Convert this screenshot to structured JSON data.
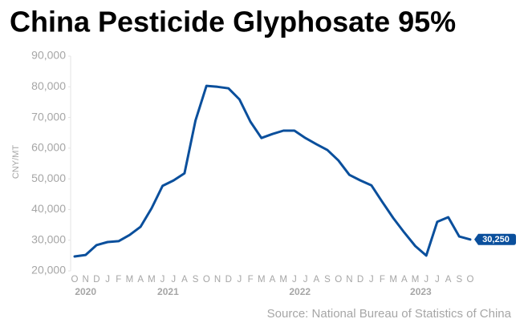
{
  "chart_data": {
    "type": "line",
    "title": "China Pesticide Glyphosate 95%",
    "y_label": "CNY/MT",
    "source": "Source: National Bureau of Statistics of China",
    "categories": [
      "O",
      "N",
      "D",
      "J",
      "F",
      "M",
      "A",
      "M",
      "J",
      "J",
      "A",
      "S",
      "O",
      "N",
      "D",
      "J",
      "F",
      "M",
      "A",
      "M",
      "J",
      "J",
      "A",
      "S",
      "O",
      "N",
      "D",
      "J",
      "F",
      "M",
      "A",
      "M",
      "J",
      "J",
      "A",
      "S",
      "O"
    ],
    "years": [
      "2020",
      "2021",
      "2022",
      "2023"
    ],
    "series": [
      {
        "name": "Glyphosate 95%",
        "color": "#0a4f9c",
        "values": [
          24700,
          25200,
          28400,
          29400,
          29700,
          31700,
          34400,
          40400,
          47700,
          49500,
          51800,
          69000,
          80300,
          80000,
          79500,
          75900,
          68600,
          63300,
          64600,
          65700,
          65700,
          63300,
          61300,
          59400,
          56000,
          51300,
          49500,
          47900,
          42500,
          37200,
          32500,
          28100,
          25000,
          36000,
          37500,
          31200,
          30250
        ],
        "value_labels": [
          null,
          null,
          null,
          null,
          null,
          null,
          null,
          null,
          null,
          null,
          null,
          null,
          null,
          null,
          null,
          null,
          null,
          null,
          null,
          null,
          null,
          null,
          null,
          null,
          null,
          null,
          null,
          null,
          null,
          null,
          null,
          null,
          null,
          null,
          null,
          null,
          "30,250"
        ]
      }
    ],
    "ylim": [
      20000,
      90000
    ],
    "yticks": [
      {
        "value": 20000,
        "label": "20,000"
      },
      {
        "value": 30000,
        "label": "30,000"
      },
      {
        "value": 40000,
        "label": "40,000"
      },
      {
        "value": 50000,
        "label": "50,000"
      },
      {
        "value": 60000,
        "label": "60,000"
      },
      {
        "value": 70000,
        "label": "70,000"
      },
      {
        "value": 80000,
        "label": "80,000"
      },
      {
        "value": 90000,
        "label": "90,000"
      }
    ],
    "grid": false
  }
}
